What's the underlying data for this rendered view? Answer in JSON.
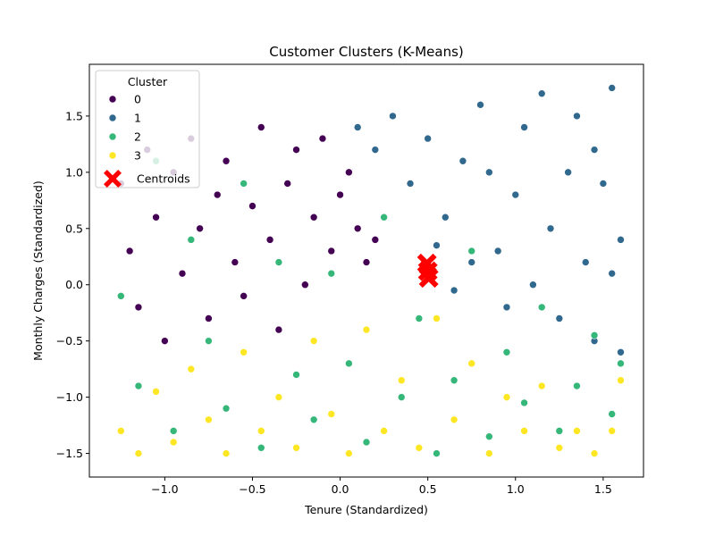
{
  "chart_data": {
    "type": "scatter",
    "title": "Customer Clusters (K-Means)",
    "xlabel": "Tenure (Standardized)",
    "ylabel": "Monthly Charges (Standardized)",
    "xlim": [
      -1.43,
      1.73
    ],
    "ylim": [
      -1.71,
      1.96
    ],
    "xticks": [
      -1.0,
      -0.5,
      0.0,
      0.5,
      1.0,
      1.5
    ],
    "xtick_labels": [
      "−1.0",
      "−0.5",
      "0.0",
      "0.5",
      "1.0",
      "1.5"
    ],
    "yticks": [
      -1.5,
      -1.0,
      -0.5,
      0.0,
      0.5,
      1.0,
      1.5
    ],
    "ytick_labels": [
      "−1.5",
      "−1.0",
      "−0.5",
      "0.0",
      "0.5",
      "1.0",
      "1.5"
    ],
    "grid": false,
    "legend": {
      "title": "Cluster",
      "placement": "upper-left",
      "entries": [
        "0",
        "1",
        "2",
        "3",
        "Centroids"
      ]
    },
    "series": [
      {
        "name": "0",
        "color": "#440154",
        "x_range": [
          -1.28,
          0.25
        ],
        "y_range": [
          -0.7,
          1.5
        ],
        "points": [
          [
            -1.25,
            0.9
          ],
          [
            -1.2,
            0.3
          ],
          [
            -1.15,
            -0.2
          ],
          [
            -1.1,
            1.2
          ],
          [
            -1.05,
            0.6
          ],
          [
            -1.0,
            -0.5
          ],
          [
            -0.95,
            1.0
          ],
          [
            -0.9,
            0.1
          ],
          [
            -0.85,
            1.3
          ],
          [
            -0.8,
            0.5
          ],
          [
            -0.75,
            -0.3
          ],
          [
            -0.7,
            0.8
          ],
          [
            -0.65,
            1.1
          ],
          [
            -0.6,
            0.2
          ],
          [
            -0.55,
            -0.1
          ],
          [
            -0.5,
            0.7
          ],
          [
            -0.45,
            1.4
          ],
          [
            -0.4,
            0.4
          ],
          [
            -0.35,
            -0.4
          ],
          [
            -0.3,
            0.9
          ],
          [
            -0.25,
            1.2
          ],
          [
            -0.2,
            0.0
          ],
          [
            -0.15,
            0.6
          ],
          [
            -0.1,
            1.3
          ],
          [
            -0.05,
            0.3
          ],
          [
            0.0,
            0.8
          ],
          [
            0.05,
            1.0
          ],
          [
            0.1,
            0.5
          ],
          [
            0.15,
            0.2
          ],
          [
            0.2,
            0.4
          ]
        ]
      },
      {
        "name": "1",
        "color": "#31688e",
        "x_range": [
          0.05,
          1.62
        ],
        "y_range": [
          -0.7,
          1.8
        ],
        "points": [
          [
            0.1,
            1.4
          ],
          [
            0.2,
            1.2
          ],
          [
            0.3,
            1.5
          ],
          [
            0.4,
            0.9
          ],
          [
            0.5,
            1.3
          ],
          [
            0.6,
            0.6
          ],
          [
            0.7,
            1.1
          ],
          [
            0.8,
            1.6
          ],
          [
            0.9,
            0.3
          ],
          [
            1.0,
            0.8
          ],
          [
            1.05,
            1.4
          ],
          [
            1.1,
            0.0
          ],
          [
            1.15,
            1.7
          ],
          [
            1.2,
            0.5
          ],
          [
            1.25,
            -0.3
          ],
          [
            1.3,
            1.0
          ],
          [
            1.35,
            1.5
          ],
          [
            1.4,
            0.2
          ],
          [
            1.45,
            -0.5
          ],
          [
            1.5,
            0.9
          ],
          [
            1.55,
            1.75
          ],
          [
            1.6,
            0.4
          ],
          [
            1.6,
            -0.6
          ],
          [
            0.55,
            0.35
          ],
          [
            0.65,
            -0.05
          ],
          [
            0.75,
            0.2
          ],
          [
            0.85,
            1.0
          ],
          [
            0.95,
            -0.2
          ],
          [
            1.45,
            1.2
          ],
          [
            1.55,
            0.1
          ]
        ]
      },
      {
        "name": "2",
        "color": "#35b779",
        "x_range": [
          -1.28,
          1.62
        ],
        "y_range": [
          -1.55,
          1.4
        ],
        "points": [
          [
            -1.25,
            -0.1
          ],
          [
            -1.15,
            -0.9
          ],
          [
            -1.05,
            1.1
          ],
          [
            -0.95,
            -1.3
          ],
          [
            -0.85,
            0.4
          ],
          [
            -0.75,
            -0.5
          ],
          [
            -0.65,
            -1.1
          ],
          [
            -0.55,
            0.9
          ],
          [
            -0.45,
            -1.45
          ],
          [
            -0.35,
            0.2
          ],
          [
            -0.25,
            -0.8
          ],
          [
            -0.15,
            -1.2
          ],
          [
            -0.05,
            0.1
          ],
          [
            0.05,
            -0.7
          ],
          [
            0.15,
            -1.4
          ],
          [
            0.25,
            0.6
          ],
          [
            0.35,
            -1.0
          ],
          [
            0.45,
            -0.3
          ],
          [
            0.55,
            -1.5
          ],
          [
            0.65,
            -0.85
          ],
          [
            0.75,
            0.3
          ],
          [
            0.85,
            -1.35
          ],
          [
            0.95,
            -0.6
          ],
          [
            1.05,
            -1.05
          ],
          [
            1.15,
            -0.2
          ],
          [
            1.25,
            -1.3
          ],
          [
            1.35,
            -0.9
          ],
          [
            1.45,
            -0.45
          ],
          [
            1.55,
            -1.15
          ],
          [
            1.6,
            -0.7
          ]
        ]
      },
      {
        "name": "3",
        "color": "#fde725",
        "x_range": [
          -1.28,
          1.62
        ],
        "y_range": [
          -1.55,
          -0.1
        ],
        "points": [
          [
            -1.25,
            -1.3
          ],
          [
            -1.15,
            -1.5
          ],
          [
            -1.05,
            -0.95
          ],
          [
            -0.95,
            -1.4
          ],
          [
            -0.85,
            -0.75
          ],
          [
            -0.75,
            -1.2
          ],
          [
            -0.65,
            -1.5
          ],
          [
            -0.55,
            -0.6
          ],
          [
            -0.45,
            -1.3
          ],
          [
            -0.35,
            -1.0
          ],
          [
            -0.25,
            -1.45
          ],
          [
            -0.15,
            -0.5
          ],
          [
            -0.05,
            -1.15
          ],
          [
            0.05,
            -1.5
          ],
          [
            0.15,
            -0.4
          ],
          [
            0.25,
            -1.3
          ],
          [
            0.35,
            -0.85
          ],
          [
            0.45,
            -1.45
          ],
          [
            0.55,
            -0.3
          ],
          [
            0.65,
            -1.2
          ],
          [
            0.75,
            -0.7
          ],
          [
            0.85,
            -1.5
          ],
          [
            0.95,
            -1.0
          ],
          [
            1.05,
            -1.3
          ],
          [
            1.15,
            -0.9
          ],
          [
            1.25,
            -1.45
          ],
          [
            1.35,
            -1.3
          ],
          [
            1.45,
            -1.5
          ],
          [
            1.55,
            -1.3
          ],
          [
            1.6,
            -0.85
          ]
        ]
      }
    ],
    "centroids": {
      "name": "Centroids",
      "color": "#ff0000",
      "marker": "X",
      "points": [
        [
          0.495,
          0.19
        ],
        [
          0.5,
          0.12
        ],
        [
          0.505,
          0.06
        ]
      ]
    }
  }
}
